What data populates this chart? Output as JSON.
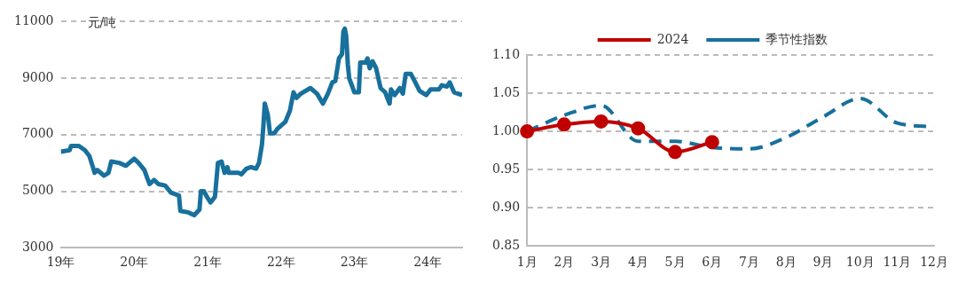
{
  "chart_data": [
    {
      "type": "line",
      "ylabel": "元/吨",
      "xlim": [
        "2019-01-01",
        "2024-06-20"
      ],
      "xticks": [
        {
          "value": "2019-01-01",
          "label": "19年"
        },
        {
          "value": "2020-01-01",
          "label": "20年"
        },
        {
          "value": "2021-01-01",
          "label": "21年"
        },
        {
          "value": "2022-01-01",
          "label": "22年"
        },
        {
          "value": "2023-01-01",
          "label": "23年"
        },
        {
          "value": "2024-01-01",
          "label": "24年"
        }
      ],
      "ylim": [
        3000,
        11000
      ],
      "yticks": [
        3000,
        5000,
        7000,
        9000,
        11000
      ],
      "grid": "y",
      "marker": "none",
      "line_style": "solid",
      "series": [
        {
          "color": "#18709c",
          "x": [
            "2019-01-01",
            "2019-02-14",
            "2019-02-21",
            "2019-04-01",
            "2019-05-01",
            "2019-05-23",
            "2019-06-10",
            "2019-06-18",
            "2019-07-02",
            "2019-08-04",
            "2019-08-26",
            "2019-09-09",
            "2019-10-19",
            "2019-11-21",
            "2020-01-01",
            "2020-01-23",
            "2020-02-21",
            "2020-03-07",
            "2020-03-18",
            "2020-04-09",
            "2020-05-01",
            "2020-06-03",
            "2020-07-02",
            "2020-08-11",
            "2020-08-18",
            "2020-09-27",
            "2020-10-26",
            "2020-11-21",
            "2020-11-28",
            "2020-12-13",
            "2020-12-28",
            "2021-01-15",
            "2021-02-06",
            "2021-02-21",
            "2021-03-11",
            "2021-03-26",
            "2021-04-09",
            "2021-04-16",
            "2021-06-03",
            "2021-06-18",
            "2021-07-13",
            "2021-08-04",
            "2021-08-30",
            "2021-09-13",
            "2021-09-28",
            "2021-10-05",
            "2021-10-12",
            "2021-10-27",
            "2021-11-07",
            "2021-11-29",
            "2021-12-13",
            "2022-01-22",
            "2022-02-14",
            "2022-03-04",
            "2022-03-18",
            "2022-04-09",
            "2022-05-27",
            "2022-06-29",
            "2022-07-28",
            "2022-08-22",
            "2022-09-13",
            "2022-09-28",
            "2022-10-16",
            "2022-10-31",
            "2022-11-07",
            "2022-11-14",
            "2022-11-21",
            "2022-11-29",
            "2022-12-06",
            "2023-01-01",
            "2023-01-23",
            "2023-01-30",
            "2023-02-25",
            "2023-03-07",
            "2023-03-18",
            "2023-04-01",
            "2023-04-19",
            "2023-05-11",
            "2023-06-03",
            "2023-06-25",
            "2023-07-02",
            "2023-07-20",
            "2023-08-15",
            "2023-08-30",
            "2023-09-13",
            "2023-10-09",
            "2023-10-31",
            "2023-11-21",
            "2023-12-24",
            "2024-01-15",
            "2024-02-25",
            "2024-03-11",
            "2024-04-05",
            "2024-04-19",
            "2024-05-11",
            "2024-06-20"
          ],
          "values": [
            6400,
            6450,
            6600,
            6600,
            6450,
            6250,
            5850,
            5650,
            5750,
            5550,
            5650,
            6050,
            6000,
            5900,
            6150,
            6000,
            5750,
            5450,
            5250,
            5400,
            5250,
            5200,
            4950,
            4850,
            4300,
            4250,
            4150,
            4350,
            5000,
            5000,
            4800,
            4600,
            4800,
            6000,
            6050,
            5650,
            5850,
            5650,
            5650,
            5600,
            5800,
            5850,
            5800,
            6000,
            6650,
            7300,
            8100,
            7700,
            7050,
            7050,
            7200,
            7450,
            7850,
            8500,
            8300,
            8450,
            8650,
            8450,
            8100,
            8450,
            8850,
            8900,
            9700,
            9850,
            10650,
            10750,
            10500,
            9500,
            9000,
            8500,
            8500,
            9550,
            9550,
            9700,
            9350,
            9600,
            9350,
            8650,
            8500,
            8100,
            8600,
            8400,
            8650,
            8450,
            9150,
            9150,
            8850,
            8550,
            8400,
            8600,
            8600,
            8750,
            8700,
            8850,
            8500,
            8400
          ]
        }
      ]
    },
    {
      "type": "line",
      "categories": [
        "1月",
        "2月",
        "3月",
        "4月",
        "5月",
        "6月",
        "7月",
        "8月",
        "9月",
        "10月",
        "11月",
        "12月"
      ],
      "ylim": [
        0.85,
        1.1
      ],
      "yticks": [
        0.85,
        {
          "value": 0.9,
          "label": "0.90"
        },
        0.95,
        {
          "value": 1.0,
          "label": "1.00"
        },
        1.05,
        {
          "value": 1.1,
          "label": "1.10"
        }
      ],
      "grid": "y",
      "legend": "top",
      "series": [
        {
          "name": "2024",
          "color": "#c00000",
          "marker": "circle",
          "line_style": "solid",
          "values": [
            1.0,
            1.009,
            1.013,
            1.004,
            0.973,
            0.986,
            null,
            null,
            null,
            null,
            null,
            null
          ]
        },
        {
          "name": "季节性指数",
          "color": "#18709c",
          "marker": "none",
          "line_style": "dashed",
          "values": [
            1.0,
            1.021,
            1.034,
            0.987,
            0.987,
            0.979,
            0.977,
            0.992,
            1.019,
            1.043,
            1.011,
            1.006
          ]
        }
      ]
    }
  ]
}
